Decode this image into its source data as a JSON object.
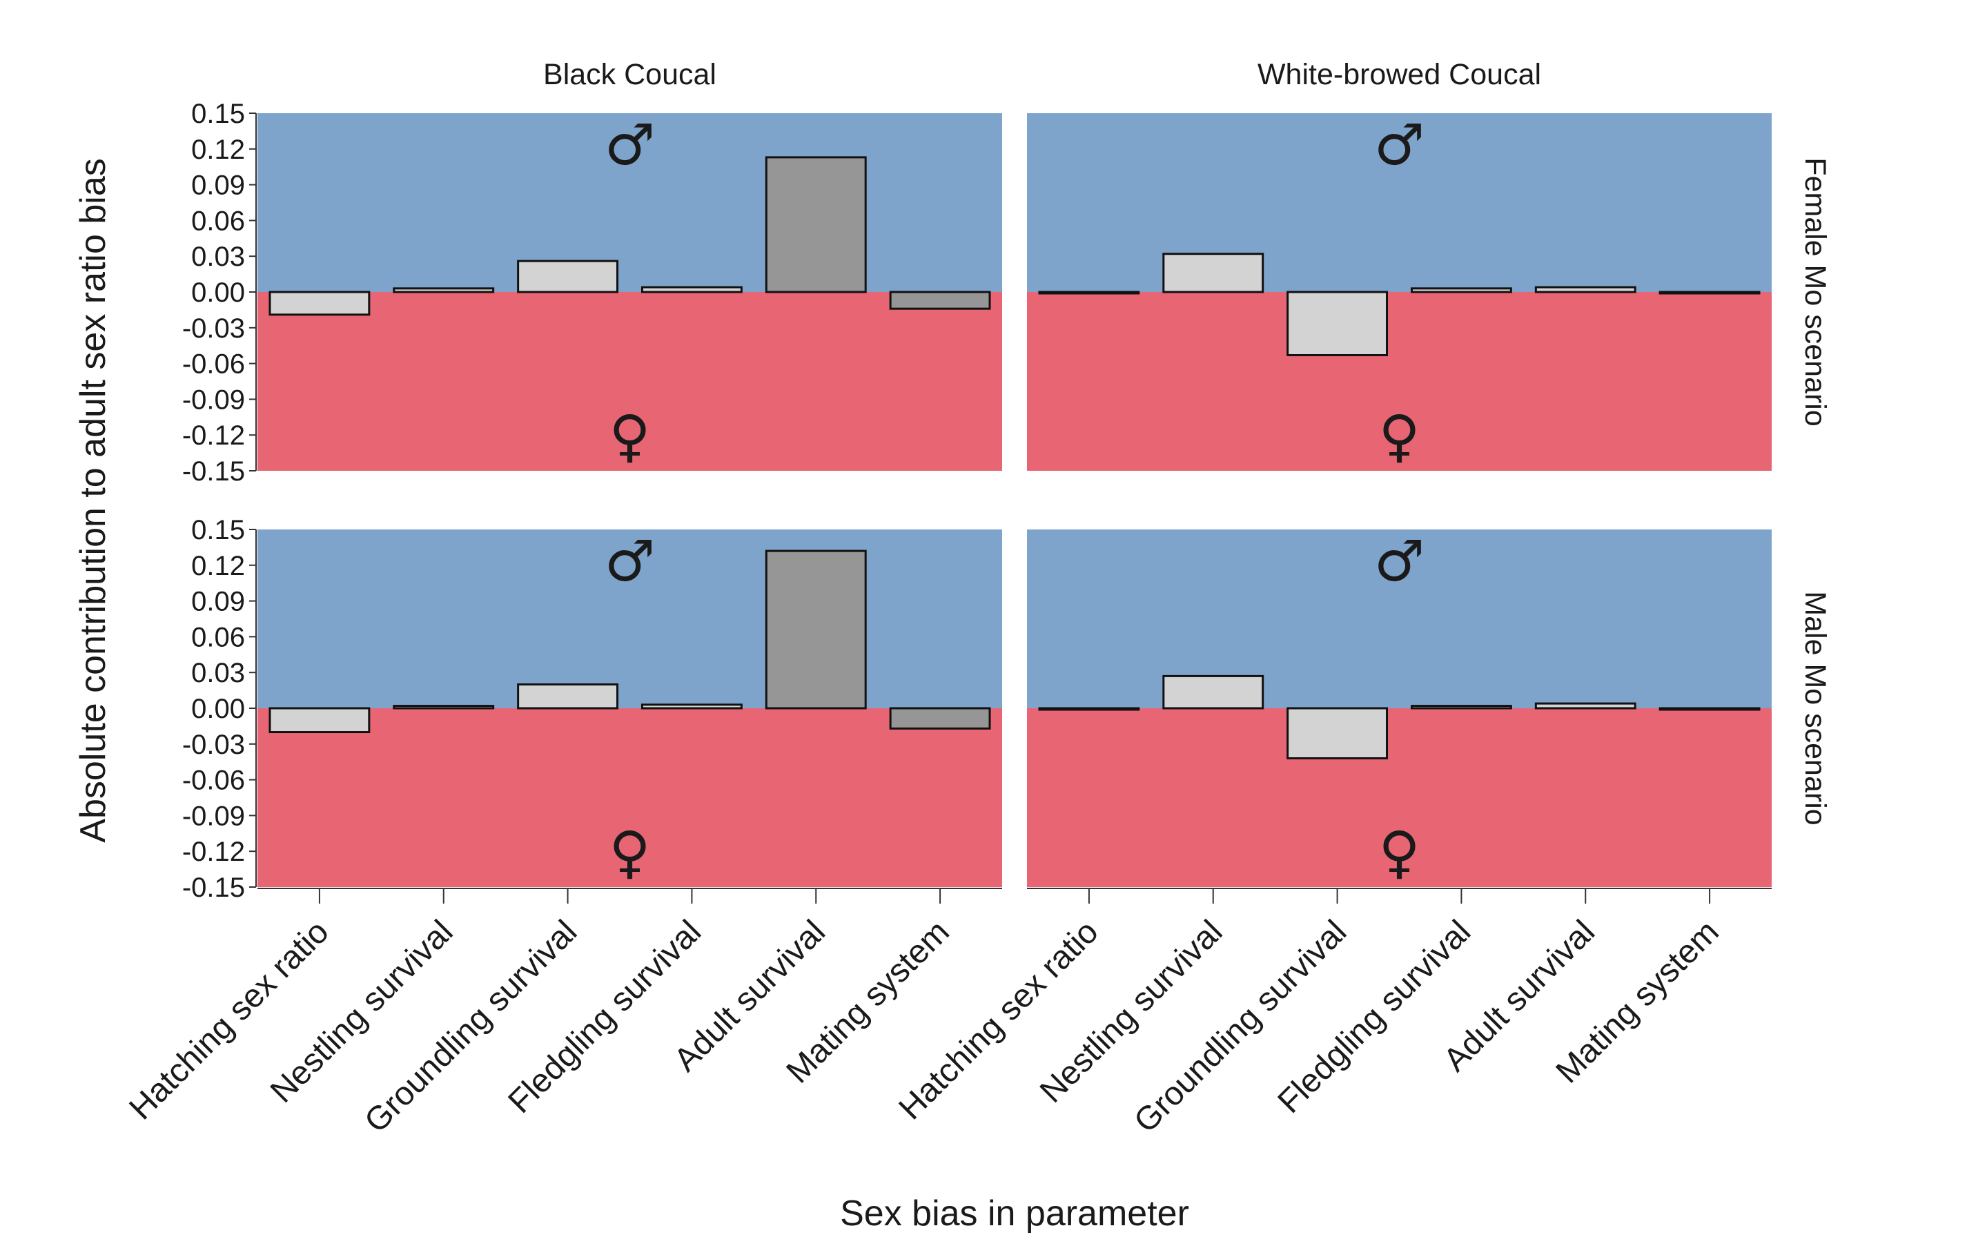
{
  "chart_data": {
    "type": "bar",
    "xlabel": "Sex bias in parameter",
    "ylabel": "Absolute contribution to adult sex ratio bias",
    "ylim": [
      -0.15,
      0.15
    ],
    "yticks": [
      0.15,
      0.12,
      0.09,
      0.06,
      0.03,
      0.0,
      -0.03,
      -0.06,
      -0.09,
      -0.12,
      -0.15
    ],
    "ytick_labels": [
      "0.15",
      "0.12",
      "0.09",
      "0.06",
      "0.03",
      "0.00",
      "-0.03",
      "-0.06",
      "-0.09",
      "-0.12",
      "-0.15"
    ],
    "categories": [
      "Hatching sex ratio",
      "Nestling survival",
      "Groundling survival",
      "Fledgling survival",
      "Adult survival",
      "Mating system"
    ],
    "columns": [
      "Black Coucal",
      "White-browed Coucal"
    ],
    "rows": [
      "Female Mo scenario",
      "Male Mo scenario"
    ],
    "background": {
      "male_region_color": "#7fa4cc",
      "female_region_color": "#e86673"
    },
    "region_symbols": {
      "upper": "♂",
      "lower": "♀"
    },
    "bar_colors": {
      "light": "#d3d3d3",
      "dark": "#969696",
      "edge": "#111111"
    },
    "grid": false,
    "panels": [
      {
        "row": "Female Mo scenario",
        "column": "Black Coucal",
        "values": [
          -0.019,
          0.003,
          0.026,
          0.004,
          0.113,
          -0.014
        ],
        "bar_shades": [
          "light",
          "light",
          "light",
          "light",
          "dark",
          "dark"
        ]
      },
      {
        "row": "Female Mo scenario",
        "column": "White-browed Coucal",
        "values": [
          -0.001,
          0.032,
          -0.053,
          0.003,
          0.004,
          -0.0005
        ],
        "bar_shades": [
          "light",
          "light",
          "light",
          "light",
          "light",
          "light"
        ]
      },
      {
        "row": "Male Mo scenario",
        "column": "Black Coucal",
        "values": [
          -0.02,
          0.002,
          0.02,
          0.003,
          0.132,
          -0.017
        ],
        "bar_shades": [
          "light",
          "light",
          "light",
          "light",
          "dark",
          "dark"
        ]
      },
      {
        "row": "Male Mo scenario",
        "column": "White-browed Coucal",
        "values": [
          -0.001,
          0.027,
          -0.042,
          0.002,
          0.004,
          -0.0005
        ],
        "bar_shades": [
          "light",
          "light",
          "light",
          "light",
          "light",
          "light"
        ]
      }
    ]
  }
}
